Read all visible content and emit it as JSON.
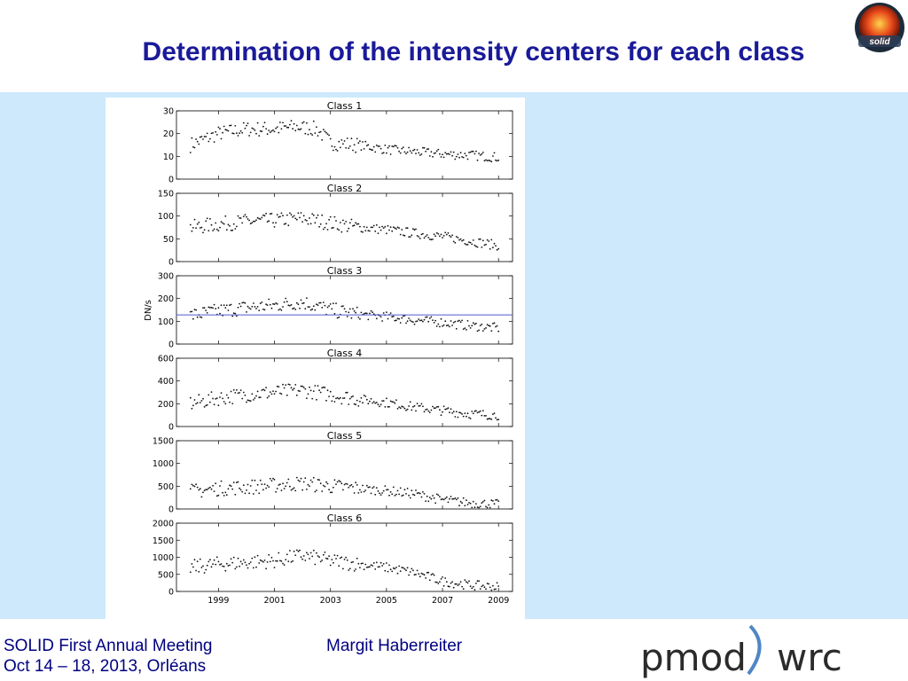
{
  "slide": {
    "title": "Determination of the intensity centers for each class",
    "logo_text": "solid"
  },
  "footer": {
    "meeting": "SOLID First Annual Meeting",
    "dates": "Oct 14 – 18, 2013, Orléans",
    "author": "Margit Haberreiter",
    "logo_left": "pmod",
    "logo_right": "wrc"
  },
  "colors": {
    "title": "#1a1a99",
    "footer_text": "#000080",
    "panel": "#cde9fb",
    "reference_line": "#4a5ad0"
  },
  "chart_data": {
    "type": "scatter",
    "ylabel": "DN/s",
    "x_ticks": [
      "1999",
      "2001",
      "2003",
      "2005",
      "2007",
      "2009"
    ],
    "x_tick_values": [
      1999,
      2001,
      2003,
      2005,
      2007,
      2009
    ],
    "xlim": [
      1997.5,
      2009.5
    ],
    "grid": false,
    "panels": [
      {
        "title": "Class 1",
        "ylim": [
          0,
          30
        ],
        "yticks": [
          "0",
          "10",
          "20",
          "30"
        ],
        "ytick_values": [
          0,
          10,
          20,
          30
        ],
        "trend": [
          [
            1998.0,
            15
          ],
          [
            1999.0,
            20
          ],
          [
            2000.0,
            22
          ],
          [
            2001.0,
            22
          ],
          [
            2001.8,
            23
          ],
          [
            2002.5,
            22
          ],
          [
            2003.0,
            16
          ],
          [
            2004.0,
            15
          ],
          [
            2005.0,
            13
          ],
          [
            2006.0,
            12
          ],
          [
            2007.0,
            11
          ],
          [
            2008.0,
            10.5
          ],
          [
            2009.0,
            9.5
          ]
        ]
      },
      {
        "title": "Class 2",
        "ylim": [
          0,
          150
        ],
        "yticks": [
          "0",
          "50",
          "100",
          "150"
        ],
        "ytick_values": [
          0,
          50,
          100,
          150
        ],
        "trend": [
          [
            1998.0,
            75
          ],
          [
            1999.0,
            82
          ],
          [
            2000.0,
            88
          ],
          [
            2001.0,
            90
          ],
          [
            2002.0,
            95
          ],
          [
            2003.0,
            85
          ],
          [
            2004.0,
            75
          ],
          [
            2005.0,
            70
          ],
          [
            2006.0,
            62
          ],
          [
            2007.0,
            55
          ],
          [
            2008.0,
            45
          ],
          [
            2009.0,
            35
          ]
        ]
      },
      {
        "title": "Class 3",
        "ylim": [
          0,
          300
        ],
        "yticks": [
          "0",
          "100",
          "200",
          "300"
        ],
        "ytick_values": [
          0,
          100,
          200,
          300
        ],
        "reference_line": 128,
        "trend": [
          [
            1998.0,
            125
          ],
          [
            1999.0,
            145
          ],
          [
            2000.0,
            160
          ],
          [
            2001.0,
            170
          ],
          [
            2002.0,
            185
          ],
          [
            2003.0,
            150
          ],
          [
            2004.0,
            130
          ],
          [
            2005.0,
            120
          ],
          [
            2006.0,
            105
          ],
          [
            2007.0,
            95
          ],
          [
            2008.0,
            80
          ],
          [
            2009.0,
            70
          ]
        ]
      },
      {
        "title": "Class 4",
        "ylim": [
          0,
          600
        ],
        "yticks": [
          "0",
          "200",
          "400",
          "600"
        ],
        "ytick_values": [
          0,
          200,
          400,
          600
        ],
        "trend": [
          [
            1998.0,
            200
          ],
          [
            1999.0,
            250
          ],
          [
            2000.0,
            280
          ],
          [
            2001.0,
            300
          ],
          [
            2002.0,
            320
          ],
          [
            2003.0,
            280
          ],
          [
            2004.0,
            240
          ],
          [
            2005.0,
            210
          ],
          [
            2006.0,
            170
          ],
          [
            2007.0,
            140
          ],
          [
            2008.0,
            110
          ],
          [
            2009.0,
            100
          ]
        ]
      },
      {
        "title": "Class 5",
        "ylim": [
          0,
          1500
        ],
        "yticks": [
          "0",
          "500",
          "1000",
          "1500"
        ],
        "ytick_values": [
          0,
          500,
          1000,
          1500
        ],
        "trend": [
          [
            1998.0,
            380
          ],
          [
            1999.0,
            450
          ],
          [
            2000.0,
            480
          ],
          [
            2001.0,
            520
          ],
          [
            2002.0,
            560
          ],
          [
            2003.0,
            500
          ],
          [
            2004.0,
            450
          ],
          [
            2005.0,
            400
          ],
          [
            2006.0,
            330
          ],
          [
            2007.0,
            200
          ],
          [
            2008.0,
            130
          ],
          [
            2009.0,
            100
          ]
        ]
      },
      {
        "title": "Class 6",
        "ylim": [
          0,
          2000
        ],
        "yticks": [
          "0",
          "500",
          "1000",
          "1500",
          "2000"
        ],
        "ytick_values": [
          0,
          500,
          1000,
          1500,
          2000
        ],
        "trend": [
          [
            1998.0,
            700
          ],
          [
            1999.0,
            800
          ],
          [
            2000.0,
            850
          ],
          [
            2001.0,
            900
          ],
          [
            2002.0,
            1050
          ],
          [
            2003.0,
            900
          ],
          [
            2004.0,
            800
          ],
          [
            2005.0,
            700
          ],
          [
            2006.0,
            550
          ],
          [
            2007.0,
            300
          ],
          [
            2008.0,
            180
          ],
          [
            2009.0,
            130
          ]
        ]
      }
    ]
  }
}
